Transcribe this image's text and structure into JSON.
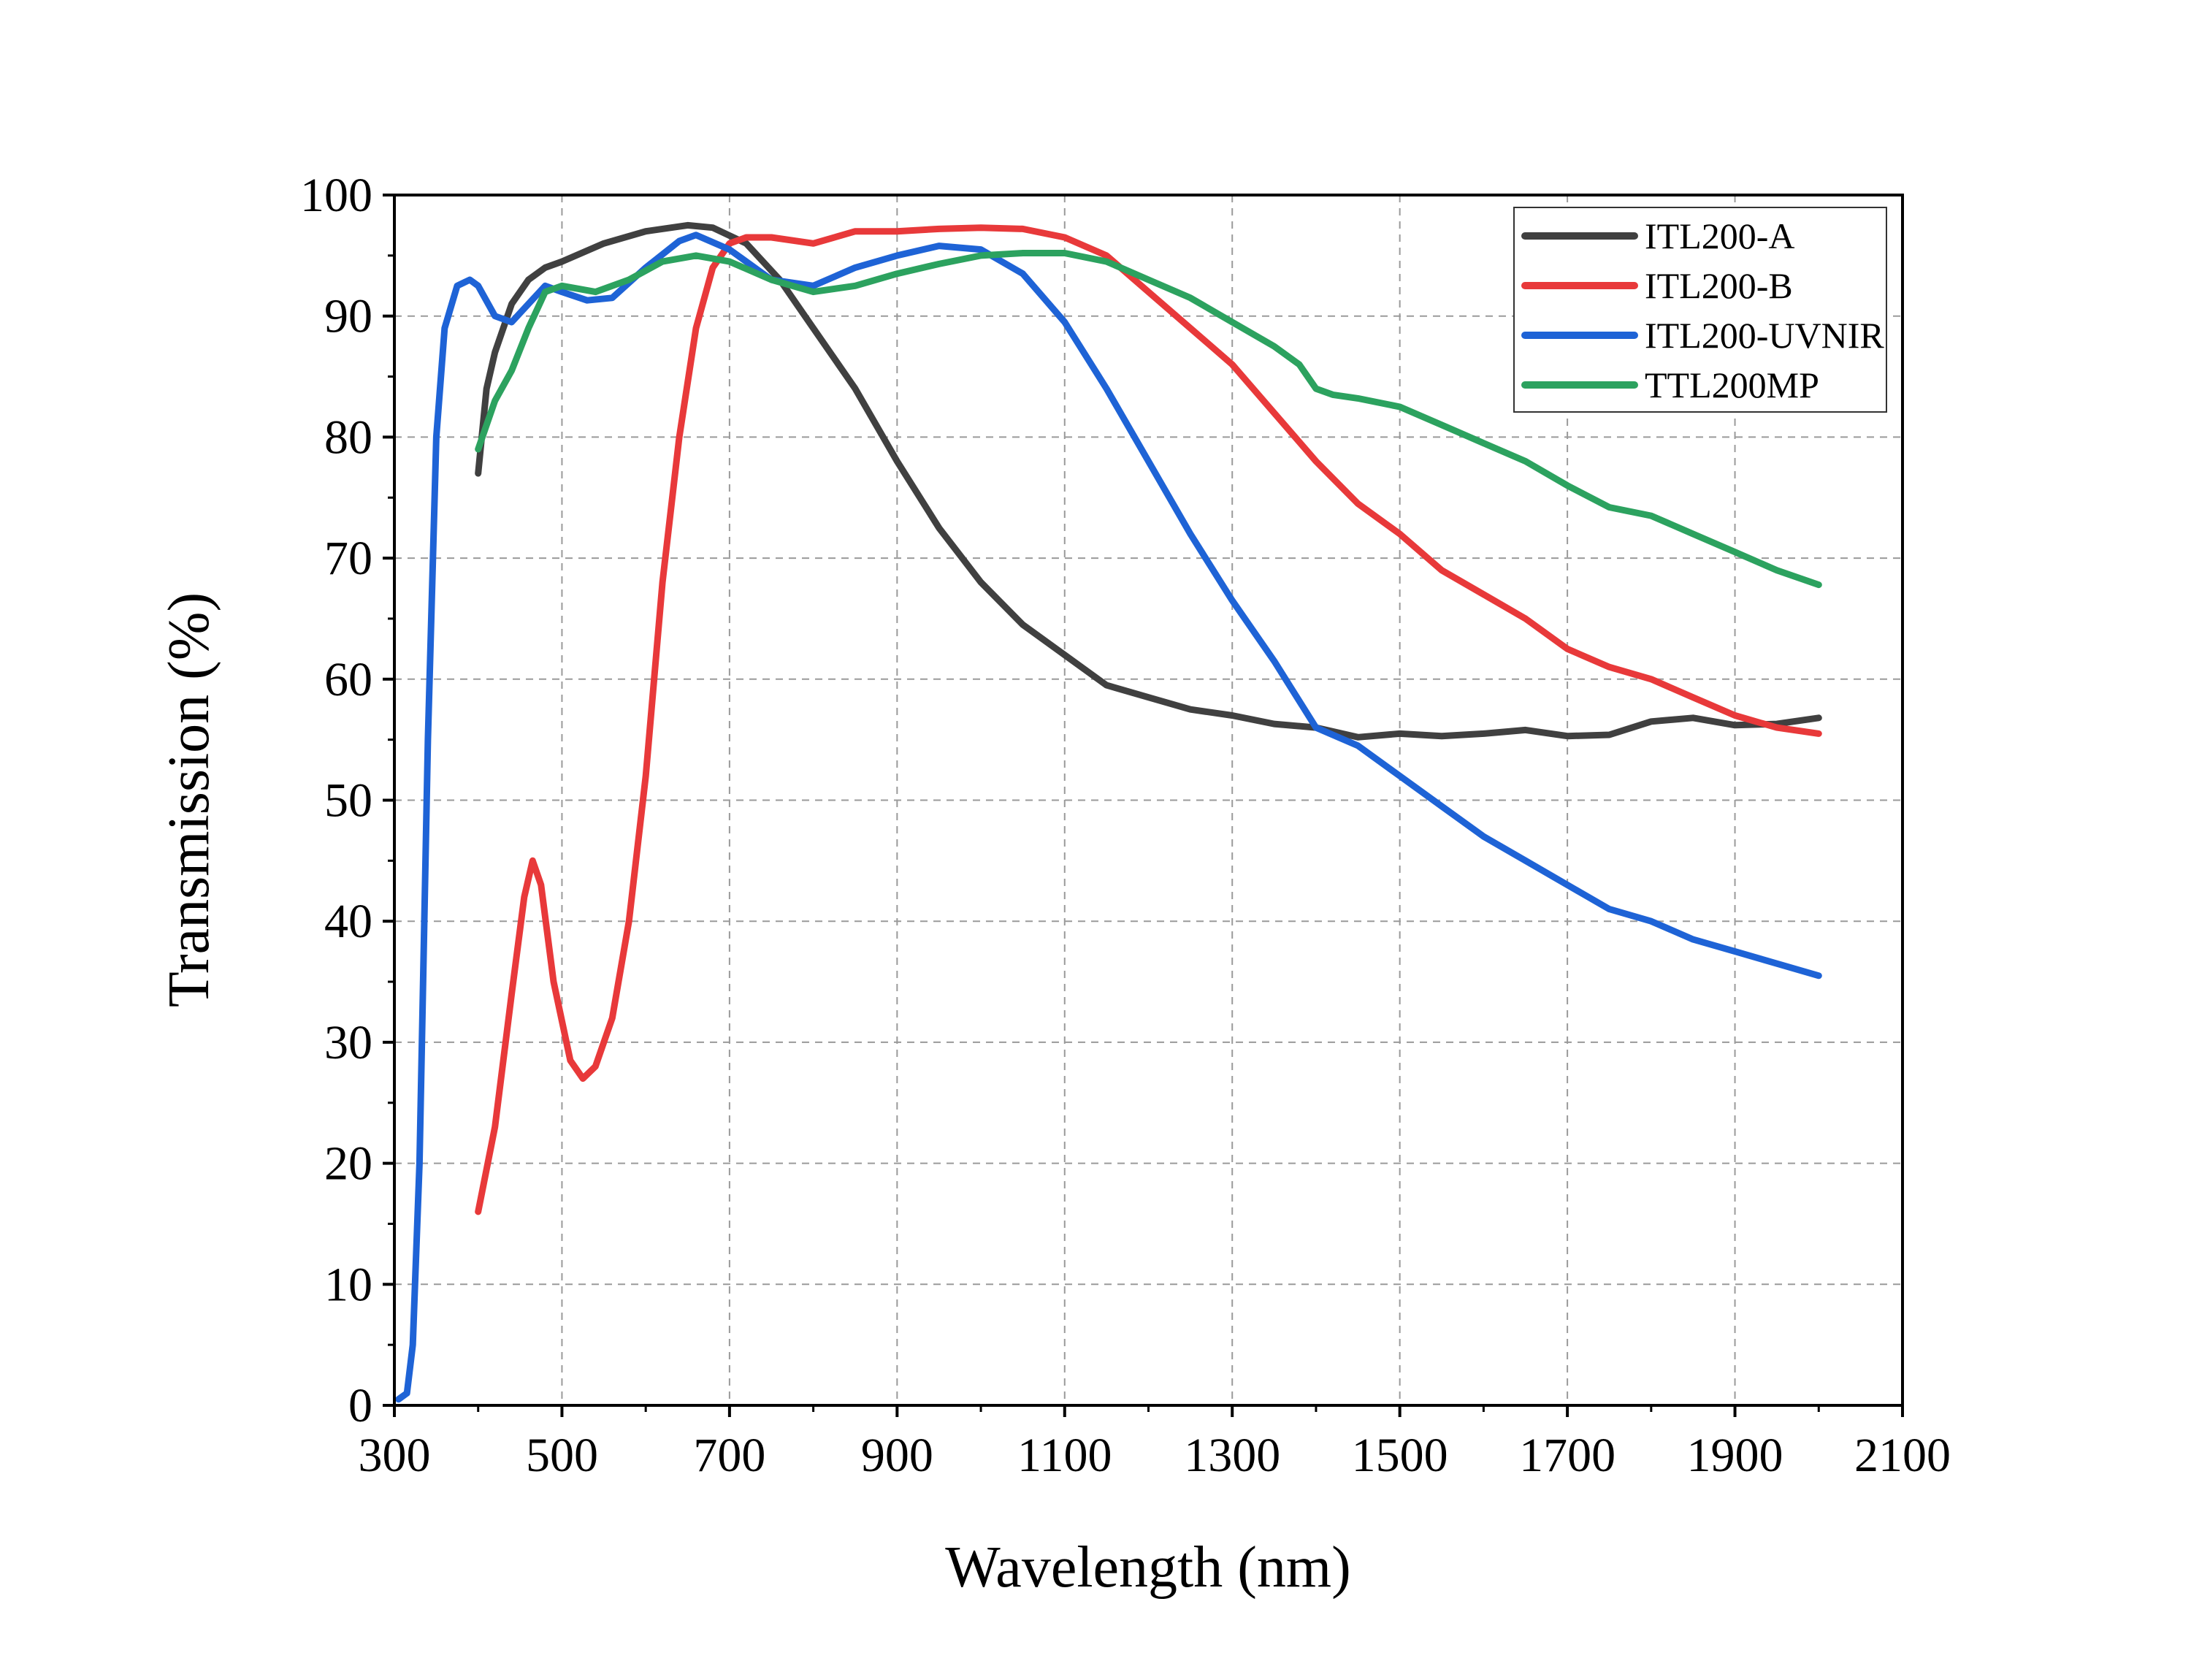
{
  "chart_data": {
    "type": "line",
    "title": "",
    "xlabel": "Wavelength (nm)",
    "ylabel": "Transmission (%)",
    "xlim": [
      300,
      2100
    ],
    "ylim": [
      0,
      100
    ],
    "xticks": [
      300,
      500,
      700,
      900,
      1100,
      1300,
      1500,
      1700,
      1900,
      2100
    ],
    "yticks": [
      0,
      10,
      20,
      30,
      40,
      50,
      60,
      70,
      80,
      90,
      100
    ],
    "xtick_labels": [
      "300",
      "500",
      "700",
      "900",
      "1100",
      "1300",
      "1500",
      "1700",
      "1900",
      "2100"
    ],
    "ytick_labels": [
      "0",
      "10",
      "20",
      "30",
      "40",
      "50",
      "60",
      "70",
      "80",
      "90",
      "100"
    ],
    "grid": true,
    "legend_position": "top-right",
    "series": [
      {
        "name": "ITL200-A",
        "color": "#404040",
        "x": [
          400,
          410,
          420,
          440,
          460,
          480,
          500,
          550,
          600,
          650,
          680,
          720,
          760,
          800,
          850,
          900,
          950,
          1000,
          1050,
          1100,
          1150,
          1200,
          1250,
          1300,
          1350,
          1400,
          1450,
          1500,
          1550,
          1600,
          1650,
          1700,
          1750,
          1800,
          1850,
          1900,
          1950,
          2000
        ],
        "y": [
          77,
          84,
          87,
          91,
          93,
          94,
          94.5,
          96,
          97,
          97.5,
          97.3,
          96,
          93,
          89,
          84,
          78,
          72.5,
          68,
          64.5,
          62,
          59.5,
          58.5,
          57.5,
          57,
          56.3,
          56,
          55.2,
          55.5,
          55.3,
          55.5,
          55.8,
          55.3,
          55.4,
          56.5,
          56.8,
          56.2,
          56.3,
          56.8
        ]
      },
      {
        "name": "ITL200-B",
        "color": "#e8393a",
        "x": [
          400,
          420,
          440,
          455,
          465,
          475,
          490,
          510,
          525,
          540,
          560,
          580,
          600,
          620,
          640,
          660,
          680,
          700,
          720,
          750,
          800,
          850,
          900,
          950,
          1000,
          1050,
          1100,
          1150,
          1200,
          1250,
          1300,
          1350,
          1400,
          1450,
          1500,
          1550,
          1600,
          1650,
          1700,
          1750,
          1800,
          1850,
          1900,
          1950,
          2000
        ],
        "y": [
          16,
          23,
          34,
          42,
          45,
          43,
          35,
          28.5,
          27,
          28,
          32,
          40,
          52,
          68,
          80,
          89,
          94,
          96,
          96.5,
          96.5,
          96,
          97,
          97,
          97.2,
          97.3,
          97.2,
          96.5,
          95,
          92,
          89,
          86,
          82,
          78,
          74.5,
          72,
          69,
          67,
          65,
          62.5,
          61,
          60,
          58.5,
          57,
          56,
          55.5
        ]
      },
      {
        "name": "ITL200-UVNIR",
        "color": "#1e63d6",
        "x": [
          305,
          315,
          322,
          330,
          340,
          350,
          360,
          375,
          390,
          400,
          420,
          440,
          460,
          480,
          500,
          530,
          560,
          600,
          640,
          660,
          700,
          750,
          800,
          850,
          900,
          950,
          1000,
          1050,
          1100,
          1150,
          1200,
          1250,
          1300,
          1350,
          1400,
          1450,
          1500,
          1550,
          1600,
          1650,
          1700,
          1750,
          1800,
          1850,
          1900,
          1950,
          2000
        ],
        "y": [
          0.5,
          1,
          5,
          20,
          55,
          80,
          89,
          92.5,
          93,
          92.5,
          90,
          89.5,
          91,
          92.5,
          92,
          91.3,
          91.5,
          94,
          96.2,
          96.7,
          95.5,
          93,
          92.5,
          94,
          95,
          95.8,
          95.5,
          93.5,
          89.5,
          84,
          78,
          72,
          66.5,
          61.5,
          56,
          54.5,
          52,
          49.5,
          47,
          45,
          43,
          41,
          40,
          38.5,
          37.5,
          36.5,
          35.5
        ]
      },
      {
        "name": "TTL200MP",
        "color": "#2ca25f",
        "x": [
          400,
          420,
          440,
          460,
          480,
          500,
          540,
          580,
          620,
          660,
          700,
          750,
          800,
          850,
          900,
          950,
          1000,
          1050,
          1100,
          1150,
          1200,
          1250,
          1300,
          1350,
          1380,
          1400,
          1420,
          1450,
          1500,
          1550,
          1600,
          1650,
          1700,
          1750,
          1800,
          1850,
          1900,
          1950,
          2000
        ],
        "y": [
          79,
          83,
          85.5,
          89,
          92,
          92.5,
          92,
          93,
          94.5,
          95,
          94.5,
          93,
          92,
          92.5,
          93.5,
          94.3,
          95,
          95.2,
          95.2,
          94.5,
          93,
          91.5,
          89.5,
          87.5,
          86,
          84,
          83.5,
          83.2,
          82.5,
          81,
          79.5,
          78,
          76,
          74.2,
          73.5,
          72,
          70.5,
          69,
          67.8
        ]
      }
    ]
  }
}
